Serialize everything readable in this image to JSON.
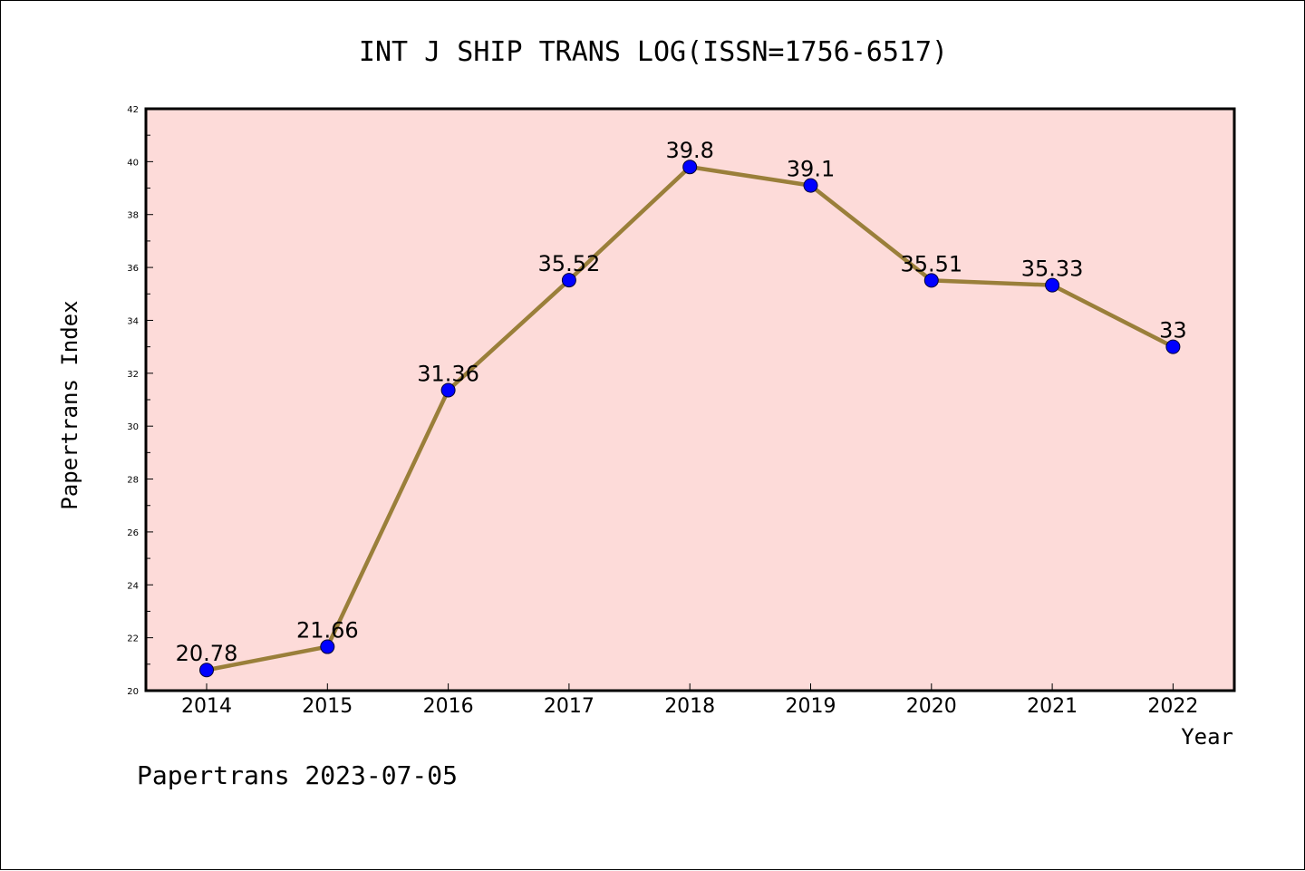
{
  "chart_data": {
    "type": "line",
    "title": "INT J SHIP TRANS LOG(ISSN=1756-6517)",
    "xlabel": "Year",
    "ylabel": "Papertrans Index",
    "categories": [
      "2014",
      "2015",
      "2016",
      "2017",
      "2018",
      "2019",
      "2020",
      "2021",
      "2022"
    ],
    "series": [
      {
        "values": [
          20.78,
          21.66,
          31.36,
          35.52,
          39.8,
          39.1,
          35.51,
          35.33,
          33
        ],
        "labels": [
          "20.78",
          "21.66",
          "31.36",
          "35.52",
          "39.8",
          "39.1",
          "35.51",
          "35.33",
          "33"
        ]
      }
    ],
    "ylim": [
      20,
      42
    ],
    "yticks": [
      "20",
      "22",
      "24",
      "26",
      "28",
      "30",
      "32",
      "34",
      "36",
      "38",
      "40",
      "42"
    ],
    "grid": false,
    "legend": "none",
    "colors": {
      "line": "#9a7f3a",
      "marker": "#0000ff",
      "plot_background": "#fddbd9",
      "frame": "#000000"
    }
  },
  "footer": "Papertrans 2023-07-05"
}
